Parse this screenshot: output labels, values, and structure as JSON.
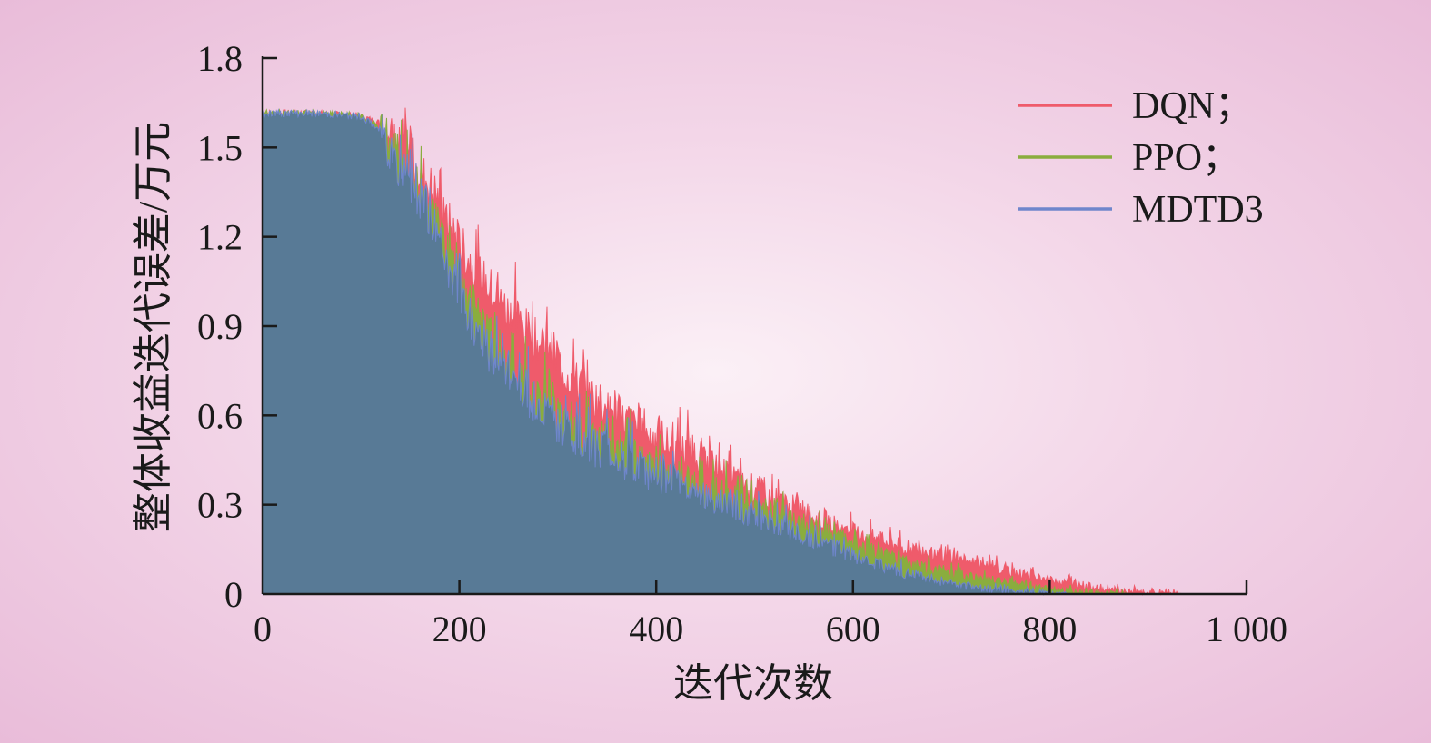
{
  "chart_data": {
    "type": "area",
    "title": "",
    "xlabel": "迭代次数",
    "ylabel": "整体收益迭代误差/万元",
    "xlim": [
      0,
      1000
    ],
    "ylim": [
      0,
      1.8
    ],
    "x_ticks": [
      0,
      200,
      400,
      600,
      800,
      1000
    ],
    "x_tick_labels": [
      "0",
      "200",
      "400",
      "600",
      "800",
      "1 000"
    ],
    "y_ticks": [
      0,
      0.3,
      0.6,
      0.9,
      1.2,
      1.5,
      1.8
    ],
    "y_tick_labels": [
      "0",
      "0.3",
      "0.6",
      "0.9",
      "1.2",
      "1.5",
      "1.8"
    ],
    "grid": false,
    "legend_position": "top-right",
    "x": [
      0,
      50,
      100,
      125,
      150,
      175,
      200,
      225,
      250,
      300,
      350,
      400,
      450,
      500,
      550,
      600,
      650,
      700,
      750,
      800,
      850,
      900,
      950,
      1000
    ],
    "series": [
      {
        "name": "DQN；",
        "color": "#ef5b6b",
        "values": [
          1.62,
          1.62,
          1.61,
          1.58,
          1.5,
          1.38,
          1.2,
          1.08,
          0.98,
          0.8,
          0.65,
          0.55,
          0.46,
          0.37,
          0.29,
          0.22,
          0.17,
          0.13,
          0.09,
          0.055,
          0.025,
          0.005,
          0,
          0
        ]
      },
      {
        "name": "PPO；",
        "color": "#8aad3e",
        "values": [
          1.62,
          1.62,
          1.61,
          1.56,
          1.44,
          1.28,
          1.08,
          0.92,
          0.8,
          0.63,
          0.53,
          0.45,
          0.38,
          0.31,
          0.25,
          0.18,
          0.12,
          0.075,
          0.045,
          0.02,
          0.005,
          0,
          0,
          0
        ]
      },
      {
        "name": "MDTD3",
        "color": "#6f86cc",
        "values": [
          1.62,
          1.62,
          1.61,
          1.55,
          1.42,
          1.26,
          1.04,
          0.88,
          0.77,
          0.6,
          0.5,
          0.42,
          0.35,
          0.28,
          0.21,
          0.14,
          0.08,
          0.04,
          0.015,
          0.003,
          0,
          0,
          0,
          0
        ]
      }
    ],
    "area_fill_color": "#587a96"
  }
}
